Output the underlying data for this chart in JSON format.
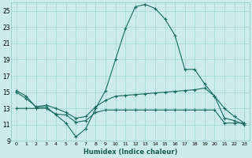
{
  "xlabel": "Humidex (Indice chaleur)",
  "background_color": "#cbecea",
  "grid_color": "#a8d8d4",
  "line_color": "#1a6b60",
  "xlim": [
    -0.5,
    23.5
  ],
  "ylim": [
    9,
    26
  ],
  "yticks": [
    9,
    11,
    13,
    15,
    17,
    19,
    21,
    23,
    25
  ],
  "xtick_labels": [
    "0",
    "1",
    "2",
    "3",
    "4",
    "5",
    "6",
    "7",
    "8",
    "9",
    "10",
    "11",
    "12",
    "13",
    "14",
    "15",
    "16",
    "17",
    "18",
    "19",
    "20",
    "21",
    "22",
    "23"
  ],
  "series": [
    {
      "x": [
        0,
        1,
        2,
        3,
        4,
        5,
        6,
        7,
        8,
        9,
        10,
        11,
        12,
        13,
        14,
        15,
        16,
        17,
        18,
        19,
        20,
        21,
        22,
        23
      ],
      "y": [
        15.2,
        14.5,
        13.1,
        13.2,
        12.2,
        11.2,
        9.5,
        10.5,
        13.0,
        15.2,
        19.0,
        22.8,
        25.5,
        25.8,
        25.3,
        24.0,
        22.0,
        17.8,
        17.8,
        16.0,
        14.5,
        13.0,
        12.0,
        11.2
      ]
    },
    {
      "x": [
        0,
        1,
        2,
        3,
        4,
        5,
        6,
        7,
        8,
        9,
        10,
        11,
        12,
        13,
        14,
        15,
        16,
        17,
        18,
        19,
        20,
        21,
        22,
        23
      ],
      "y": [
        15.0,
        14.2,
        13.2,
        13.4,
        13.0,
        12.5,
        11.8,
        12.0,
        13.2,
        14.0,
        14.5,
        14.6,
        14.7,
        14.8,
        14.9,
        15.0,
        15.1,
        15.2,
        15.3,
        15.5,
        14.5,
        11.8,
        11.5,
        11.0
      ]
    },
    {
      "x": [
        0,
        1,
        2,
        3,
        4,
        5,
        6,
        7,
        8,
        9,
        10,
        11,
        12,
        13,
        14,
        15,
        16,
        17,
        18,
        19,
        20,
        21,
        22,
        23
      ],
      "y": [
        13.0,
        13.0,
        13.0,
        13.0,
        12.3,
        12.2,
        11.3,
        11.5,
        12.5,
        12.8,
        12.8,
        12.8,
        12.8,
        12.8,
        12.8,
        12.8,
        12.8,
        12.8,
        12.8,
        12.8,
        12.8,
        11.2,
        11.2,
        11.2
      ]
    }
  ]
}
